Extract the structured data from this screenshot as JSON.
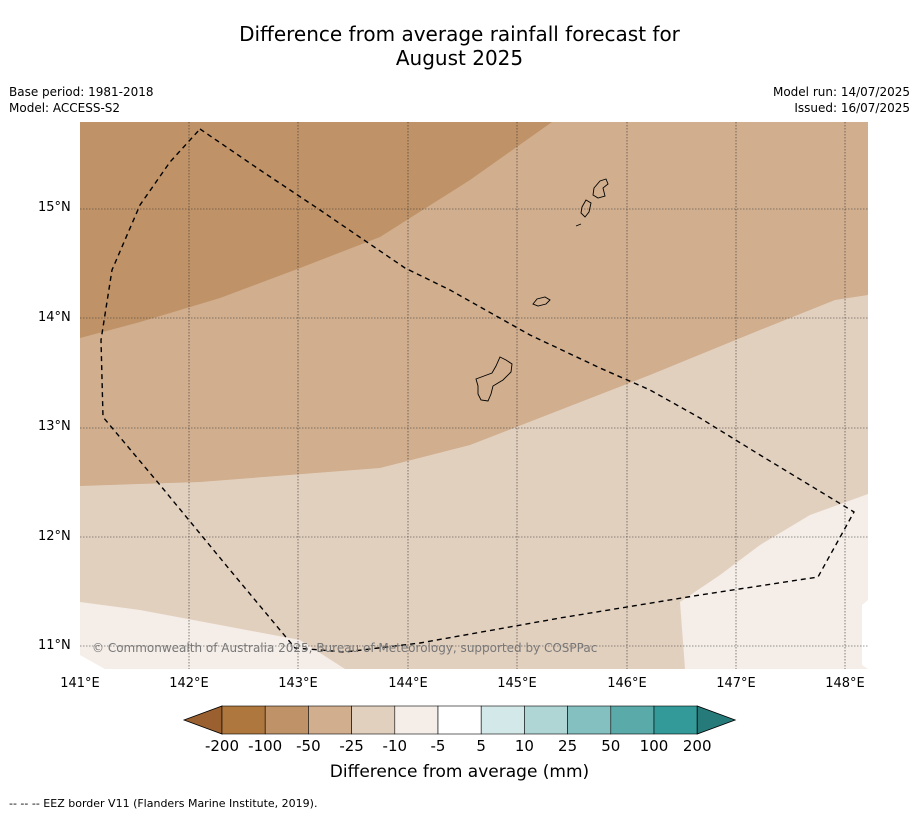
{
  "title_line1": "Difference from average rainfall forecast for",
  "title_line2": "August 2025",
  "meta": {
    "base_period": "Base period: 1981-2018",
    "model": "Model: ACCESS-S2",
    "model_run": "Model run: 14/07/2025",
    "issued": "Issued: 16/07/2025"
  },
  "map": {
    "lat_labels": [
      "15°N",
      "14°N",
      "13°N",
      "12°N",
      "11°N"
    ],
    "lon_labels": [
      "141°E",
      "142°E",
      "143°E",
      "144°E",
      "145°E",
      "146°E",
      "147°E",
      "148°E"
    ],
    "copyright": "© Commonwealth of Australia 2025, Bureau of Meteorology, supported by COSPPac"
  },
  "colorbar": {
    "labels": [
      "-200",
      "-100",
      "-50",
      "-25",
      "-10",
      "-5",
      "5",
      "10",
      "25",
      "50",
      "100",
      "200"
    ],
    "colors": [
      "#9a6030",
      "#ae773e",
      "#bf9267",
      "#d0ae8e",
      "#e2d0bf",
      "#f5ede7",
      "#ffffff",
      "#d3e8e8",
      "#afd5d4",
      "#85c0c0",
      "#5aaaaa",
      "#339999",
      "#277a7a"
    ],
    "title": "Difference from average (mm)"
  },
  "footer": "--  --  -- EEZ border V11 (Flanders Marine Institute, 2019)."
}
